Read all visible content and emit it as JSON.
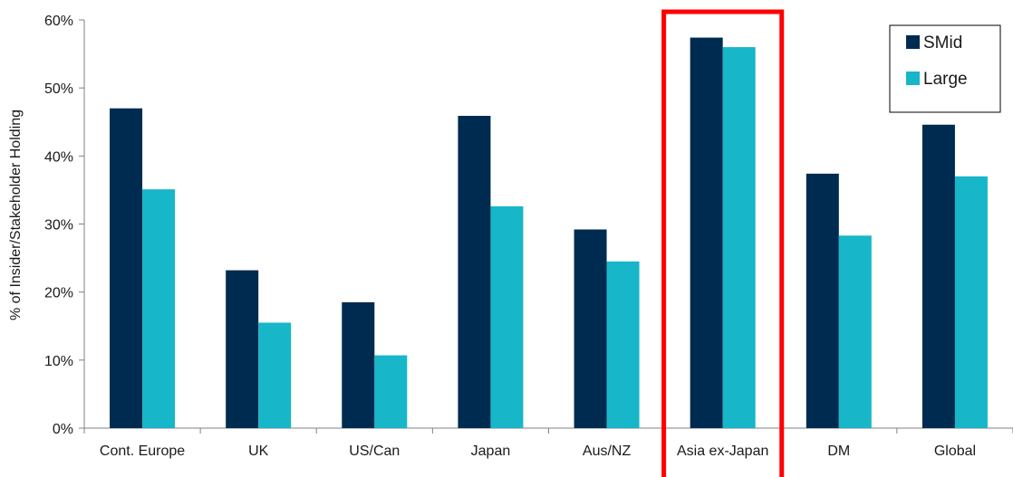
{
  "chart_data": {
    "type": "bar",
    "ylabel": "% of Insider/Stakeholder Holding",
    "ylim": [
      0,
      60
    ],
    "yticks": [
      0,
      10,
      20,
      30,
      40,
      50,
      60
    ],
    "ytick_labels": [
      "0%",
      "10%",
      "20%",
      "30%",
      "40%",
      "50%",
      "60%"
    ],
    "categories": [
      "Cont. Europe",
      "UK",
      "US/Can",
      "Japan",
      "Aus/NZ",
      "Asia ex-Japan",
      "DM",
      "Global"
    ],
    "series": [
      {
        "name": "SMid",
        "color": "#002b50",
        "values": [
          47.0,
          23.2,
          18.5,
          45.9,
          29.2,
          57.4,
          37.4,
          44.6
        ]
      },
      {
        "name": "Large",
        "color": "#17b6c8",
        "values": [
          35.1,
          15.5,
          10.7,
          32.6,
          24.5,
          56.0,
          28.3,
          37.0
        ]
      }
    ],
    "legend_position": "top-right",
    "highlight": {
      "category": "Asia ex-Japan",
      "color": "#ff0000"
    },
    "grid": false
  }
}
